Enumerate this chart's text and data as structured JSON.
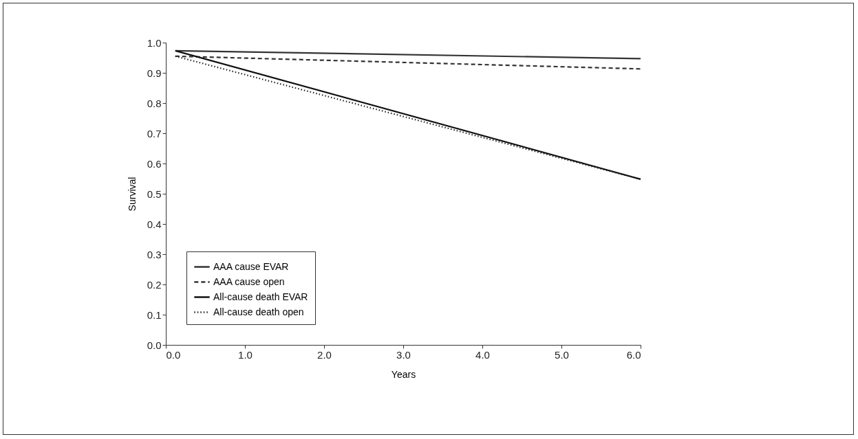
{
  "chart_data": {
    "type": "line",
    "xlabel": "Years",
    "ylabel": "Survival",
    "xlim": [
      0,
      6
    ],
    "ylim": [
      0,
      1
    ],
    "xticks": [
      {
        "value": 0,
        "label": "0.0"
      },
      {
        "value": 1,
        "label": "1.0"
      },
      {
        "value": 2,
        "label": "2.0"
      },
      {
        "value": 3,
        "label": "3.0"
      },
      {
        "value": 4,
        "label": "4.0"
      },
      {
        "value": 5,
        "label": "5.0"
      },
      {
        "value": 6,
        "label": "6.0"
      }
    ],
    "yticks": [
      {
        "value": 0,
        "label": "0.0"
      },
      0.1,
      0.2,
      0.3,
      0.4,
      0.5,
      0.6,
      0.7,
      0.8,
      0.9,
      {
        "value": 1,
        "label": "1.0"
      }
    ],
    "x": [
      0.12,
      6
    ],
    "series": [
      {
        "name": "AAA cause EVAR",
        "color": "#333333",
        "line_style": "solid",
        "values": [
          0.973,
          0.947
        ]
      },
      {
        "name": "AAA cause open",
        "color": "#333333",
        "line_style": "dashed",
        "values": [
          0.955,
          0.913
        ]
      },
      {
        "name": "All-cause death EVAR",
        "color": "#111111",
        "line_style": "solid",
        "values": [
          0.973,
          0.548
        ]
      },
      {
        "name": "All-cause death open",
        "color": "#222222",
        "line_style": "dotted",
        "values": [
          0.955,
          0.548
        ]
      }
    ],
    "legend": "bottom left",
    "grid": false
  }
}
